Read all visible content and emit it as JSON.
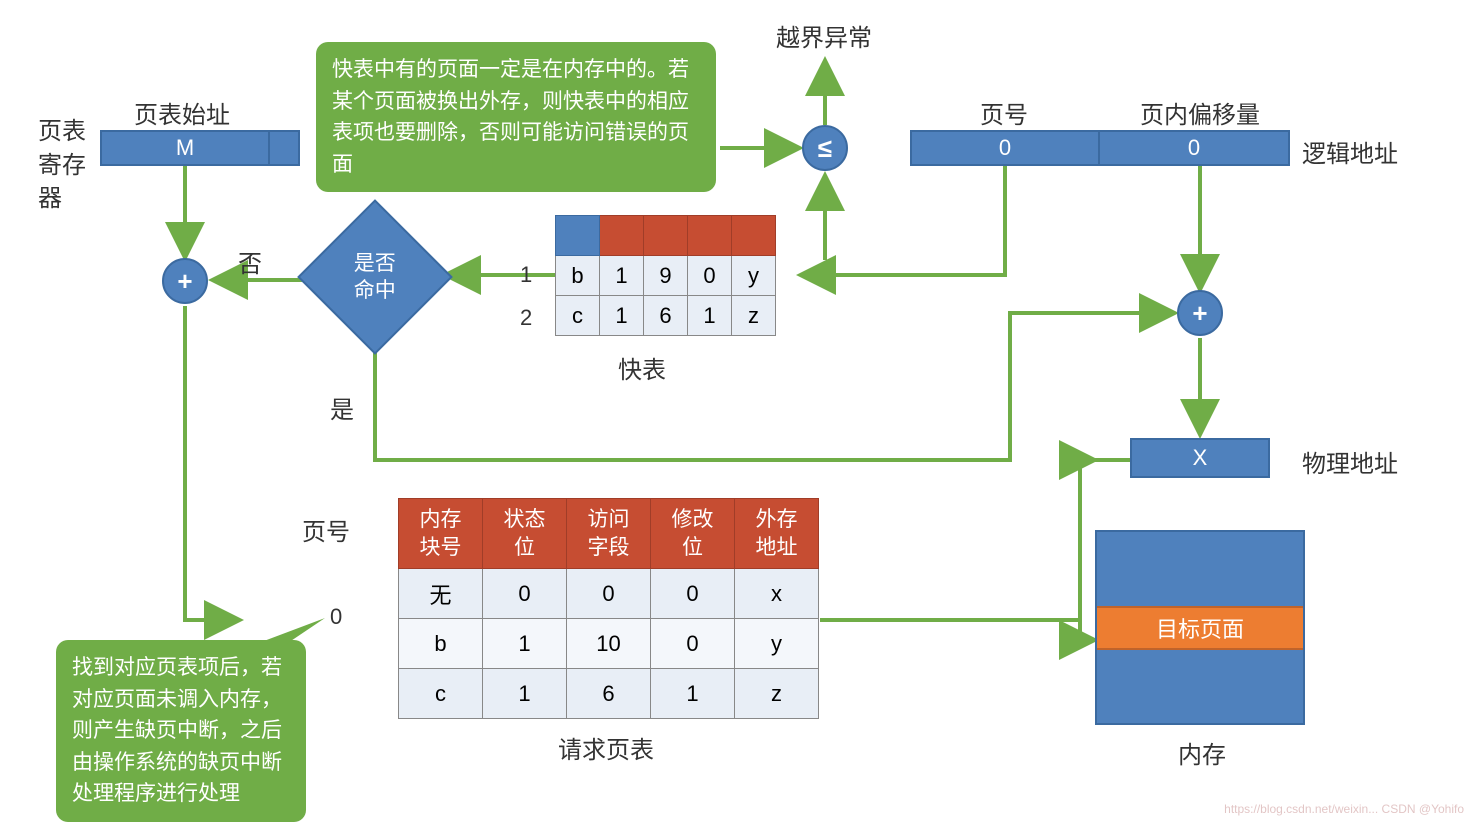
{
  "colors": {
    "blue": "#4f81bd",
    "blue_border": "#3b6aa0",
    "orange": "#c64d32",
    "orange2": "#ed7d31",
    "green": "#70ad47",
    "arrow": "#70ad47",
    "cell_bg": "#e8eef6",
    "cell_bg_alt": "#f4f7fb"
  },
  "labels": {
    "register": "页表\n寄存\n器",
    "base_addr": "页表始址",
    "M": "M",
    "exception": "越界异常",
    "le": "≤",
    "page_no_hdr": "页号",
    "offset_hdr": "页内偏移量",
    "logical_addr": "逻辑地址",
    "physical_addr": "物理地址",
    "page_no_val": "0",
    "offset_val": "0",
    "plus": "+",
    "no": "否",
    "yes": "是",
    "hit": "是否\n命中",
    "fast_label": "快表",
    "page_no_side": "页号",
    "page_table_label": "请求页表",
    "X": "X",
    "memory": "内存",
    "target_page": "目标页面",
    "row0": "0",
    "row1": "1",
    "row2": "2"
  },
  "callouts": {
    "tlb": "快表中有的页面一定是在内存中的。若某个页面被换出外存，则快表中的相应表项也要删除，否则可能访问错误的页面",
    "fault": "找到对应页表项后，若对应页面未调入内存，则产生缺页中断，之后由操作系统的缺页中断处理程序进行处理"
  },
  "fast_table": {
    "rows": [
      [
        "b",
        "1",
        "9",
        "0",
        "y"
      ],
      [
        "c",
        "1",
        "6",
        "1",
        "z"
      ]
    ]
  },
  "page_table": {
    "headers": [
      "内存\n块号",
      "状态\n位",
      "访问\n字段",
      "修改\n位",
      "外存\n地址"
    ],
    "rows": [
      [
        "无",
        "0",
        "0",
        "0",
        "x"
      ],
      [
        "b",
        "1",
        "10",
        "0",
        "y"
      ],
      [
        "c",
        "1",
        "6",
        "1",
        "z"
      ]
    ]
  },
  "watermark": "https://blog.csdn.net/weixin...  CSDN @Yohifo"
}
